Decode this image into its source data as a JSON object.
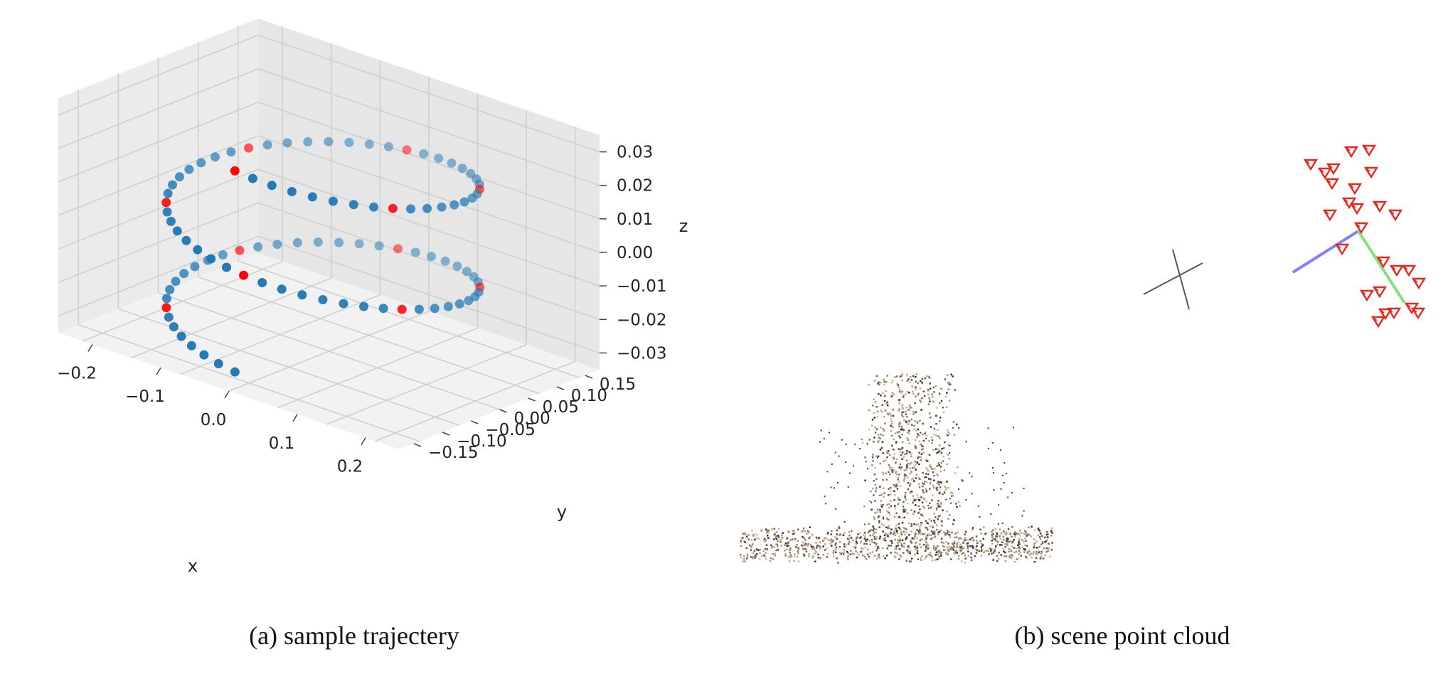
{
  "panels": [
    {
      "caption": "(a) sample trajectery"
    },
    {
      "caption": "(b) scene point cloud"
    }
  ],
  "chart_data": [
    {
      "type": "scatter",
      "projection": "3d",
      "xlabel": "x",
      "ylabel": "y",
      "zlabel": "z",
      "xticks": [
        "−0.2",
        "−0.1",
        "0.0",
        "0.1",
        "0.2"
      ],
      "yticks": [
        "0.15",
        "0.10",
        "0.05",
        "0.00",
        "−0.05",
        "−0.10",
        "−0.15"
      ],
      "zticks": [
        "0.03",
        "0.02",
        "0.01",
        "0.00",
        "−0.01",
        "−0.02",
        "−0.03"
      ],
      "xlim": [
        -0.25,
        0.25
      ],
      "ylim": [
        -0.16,
        0.18
      ],
      "zlim": [
        -0.035,
        0.035
      ],
      "grid": true,
      "trajectory": {
        "description": "helical trajectory: two loops around the z axis",
        "n_points": 96,
        "radius_x": 0.19,
        "radius_y": 0.15,
        "z_range": [
          -0.03,
          0.03
        ],
        "turns": 2
      },
      "series": [
        {
          "color": "#1f77b4"
        },
        {
          "color": "#ff0000",
          "every_nth": 8
        }
      ]
    },
    {
      "type": "scatter",
      "projection": "3d-render",
      "camera_marker_color": "#e8261c",
      "camera_marker_count": 26,
      "axis_colors": {
        "x": "#8080ff",
        "y": "#7fe37f"
      }
    }
  ]
}
